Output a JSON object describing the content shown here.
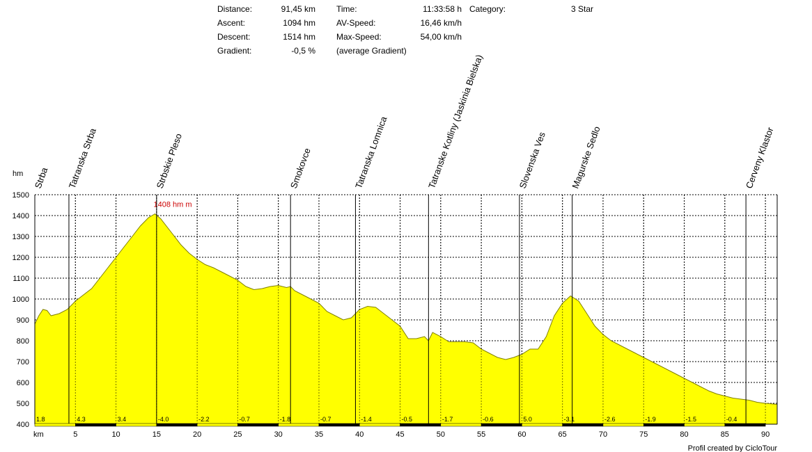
{
  "stats": {
    "distance_label": "Distance:",
    "distance_value": "91,45 km",
    "ascent_label": "Ascent:",
    "ascent_value": "1094 hm",
    "descent_label": "Descent:",
    "descent_value": "1514 hm",
    "gradient_label": "Gradient:",
    "gradient_value": "-0,5 %",
    "time_label": "Time:",
    "time_value": "11:33:58 h",
    "avspeed_label": "AV-Speed:",
    "avspeed_value": "16,46 km/h",
    "maxspeed_label": "Max-Speed:",
    "maxspeed_value": "54,00 km/h",
    "avg_gradient_note": "(average Gradient)",
    "category_label": "Category:",
    "category_value": "3 Star"
  },
  "footer": {
    "credit": "Profil created by CicloTour"
  },
  "colors": {
    "fill": "#ffff00",
    "outline": "#808000",
    "max_label": "#cc0000",
    "grid": "#000000"
  },
  "chart_data": {
    "type": "area",
    "ylabel": "hm",
    "xlabel": "km",
    "ylim": [
      400,
      1500
    ],
    "xlim": [
      0,
      91.45
    ],
    "yticks": [
      400,
      500,
      600,
      700,
      800,
      900,
      1000,
      1100,
      1200,
      1300,
      1400,
      1500
    ],
    "xticks": [
      5,
      10,
      15,
      20,
      25,
      30,
      35,
      40,
      45,
      50,
      55,
      60,
      65,
      70,
      75,
      80,
      85,
      90
    ],
    "grid": true,
    "max_label": "1408 hm m",
    "max_point": {
      "x": 14.8,
      "y": 1408
    },
    "x": [
      0,
      0.5,
      1,
      1.5,
      2,
      3,
      4,
      5,
      6,
      7,
      8,
      9,
      10,
      11,
      12,
      13,
      14,
      14.8,
      15.5,
      17,
      18,
      19,
      20,
      21,
      22,
      23,
      24,
      25,
      26,
      27,
      28,
      29,
      30,
      31,
      31.5,
      32,
      33,
      34,
      35,
      36,
      37,
      38,
      39,
      40,
      41,
      42,
      43,
      44,
      45,
      46,
      47,
      48,
      48.5,
      49,
      50,
      51,
      52,
      53,
      54,
      55,
      56,
      57,
      58,
      59,
      60,
      61,
      62,
      63,
      64,
      65,
      66,
      67,
      68,
      69,
      70,
      71,
      72,
      73,
      74,
      75,
      76,
      77,
      78,
      79,
      80,
      81,
      82,
      83,
      84,
      85,
      86,
      87,
      88,
      89,
      90,
      91.45
    ],
    "y": [
      880,
      920,
      950,
      945,
      920,
      930,
      950,
      990,
      1020,
      1050,
      1100,
      1150,
      1200,
      1250,
      1300,
      1350,
      1390,
      1408,
      1385,
      1310,
      1260,
      1220,
      1190,
      1165,
      1150,
      1130,
      1110,
      1090,
      1060,
      1045,
      1050,
      1060,
      1065,
      1055,
      1060,
      1040,
      1020,
      1000,
      980,
      940,
      920,
      900,
      910,
      950,
      965,
      960,
      930,
      900,
      870,
      810,
      810,
      820,
      800,
      840,
      820,
      795,
      795,
      795,
      790,
      760,
      740,
      720,
      710,
      720,
      735,
      760,
      760,
      820,
      920,
      980,
      1015,
      990,
      930,
      870,
      830,
      800,
      780,
      760,
      740,
      720,
      700,
      680,
      660,
      640,
      620,
      600,
      580,
      560,
      545,
      535,
      525,
      520,
      515,
      505,
      500,
      495
    ],
    "places": [
      {
        "name": "Strba",
        "km": 0
      },
      {
        "name": "Tatranska Strba",
        "km": 4.2
      },
      {
        "name": "Strbskie Pleso",
        "km": 15
      },
      {
        "name": "Smokovce",
        "km": 31.5
      },
      {
        "name": "Tatranska Lomnica",
        "km": 39.5
      },
      {
        "name": "Tatranske Kotliny (Jaskinia Bielska)",
        "km": 48.5
      },
      {
        "name": "Slovenska Ves",
        "km": 59.7
      },
      {
        "name": "Magurske Sedlo",
        "km": 66.2
      },
      {
        "name": "Cerveny Klastor",
        "km": 87.6
      }
    ],
    "segment_gradients": [
      "1.8",
      "4.3",
      "3.4",
      "-4.0",
      "-2.2",
      "-0.7",
      "-1.8",
      "-0.7",
      "-1.4",
      "-0.5",
      "-1.7",
      "-0.6",
      "5.0",
      "-3.1",
      "-2.6",
      "-1.9",
      "-1.5",
      "-0.4"
    ]
  }
}
